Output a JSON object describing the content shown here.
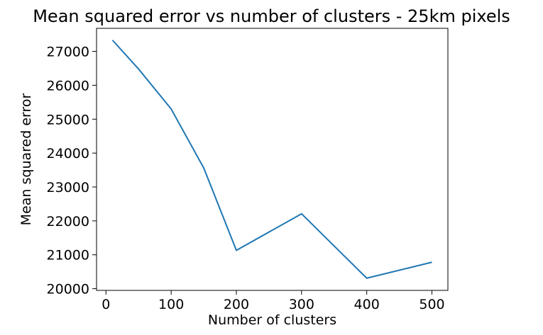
{
  "chart_data": {
    "type": "line",
    "title": "Mean squared error vs number of clusters - 25km pixels",
    "xlabel": "Number of clusters",
    "ylabel": "Mean squared error",
    "x": [
      10,
      50,
      100,
      150,
      200,
      300,
      400,
      500
    ],
    "series": [
      {
        "values": [
          27330,
          26480,
          25300,
          23560,
          21130,
          22210,
          20310,
          20780
        ],
        "color": "#1f77b4"
      }
    ],
    "xlim": [
      -14.5,
      524.5
    ],
    "ylim": [
      19950,
      27680
    ],
    "xticks": [
      0,
      100,
      200,
      300,
      400,
      500
    ],
    "yticks": [
      20000,
      21000,
      22000,
      23000,
      24000,
      25000,
      26000,
      27000
    ],
    "grid": false,
    "legend": false
  }
}
